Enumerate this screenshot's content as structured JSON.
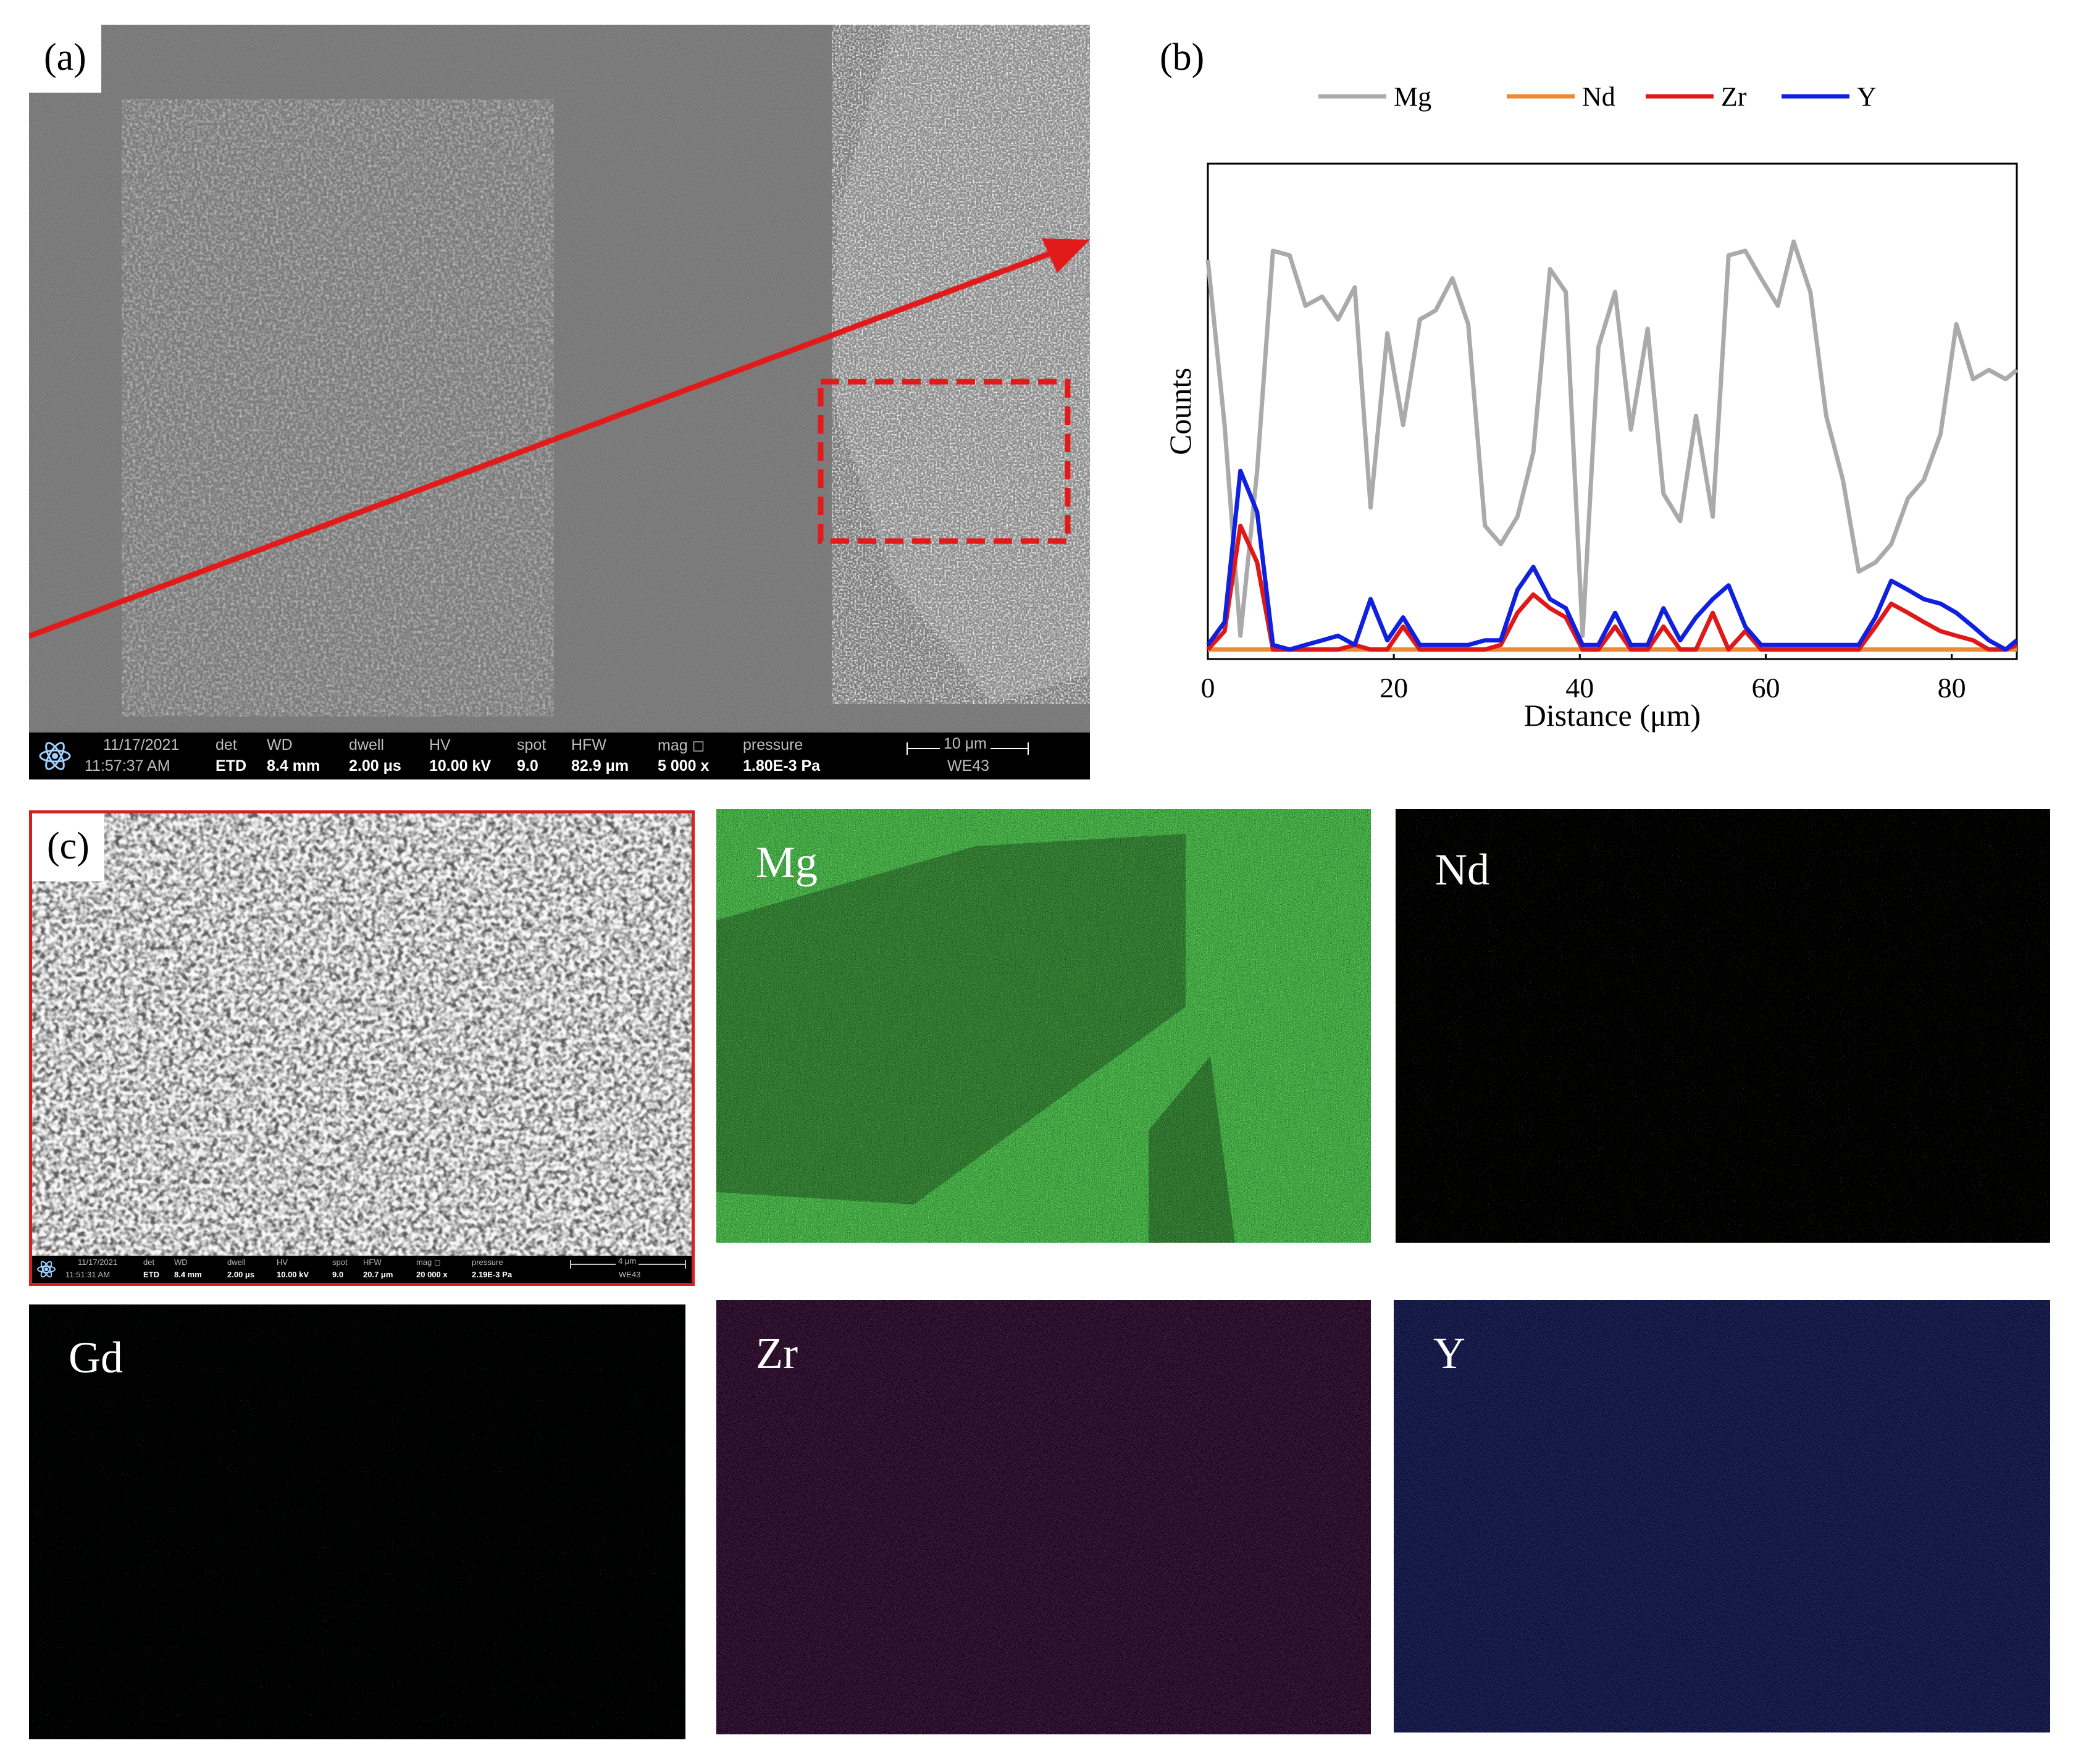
{
  "panels": {
    "a_label": "(a)",
    "b_label": "(b)",
    "c_label": "(c)"
  },
  "sem_a": {
    "date": "11/17/2021",
    "time": "11:57:37 AM",
    "det_h": "det",
    "det_v": "ETD",
    "wd_h": "WD",
    "wd_v": "8.4 mm",
    "dwell_h": "dwell",
    "dwell_v": "2.00 μs",
    "hv_h": "HV",
    "hv_v": "10.00 kV",
    "spot_h": "spot",
    "spot_v": "9.0",
    "hfw_h": "HFW",
    "hfw_v": "82.9 μm",
    "mag_h": "mag ◻",
    "mag_v": "5 000 x",
    "pressure_h": "pressure",
    "pressure_v": "1.80E-3 Pa",
    "scalebar": "10 μm",
    "sample": "WE43"
  },
  "sem_c": {
    "date": "11/17/2021",
    "time": "11:51:31 AM",
    "det_h": "det",
    "det_v": "ETD",
    "wd_h": "WD",
    "wd_v": "8.4 mm",
    "dwell_h": "dwell",
    "dwell_v": "2.00 μs",
    "hv_h": "HV",
    "hv_v": "10.00 kV",
    "spot_h": "spot",
    "spot_v": "9.0",
    "hfw_h": "HFW",
    "hfw_v": "20.7 μm",
    "mag_h": "mag ◻",
    "mag_v": "20 000 x",
    "pressure_h": "pressure",
    "pressure_v": "2.19E-3 Pa",
    "scalebar": "4 μm",
    "sample": "WE43"
  },
  "maps": [
    {
      "label": "Mg",
      "color": "#22d422"
    },
    {
      "label": "Nd",
      "color": "#c8c820"
    },
    {
      "label": "Gd",
      "color": "#20c8c8"
    },
    {
      "label": "Zr",
      "color": "#c020c0"
    },
    {
      "label": "Y",
      "color": "#2030e0"
    }
  ],
  "chart_data": {
    "type": "line",
    "title": "",
    "xlabel": "Distance (μm)",
    "ylabel": "Counts",
    "xlim": [
      0,
      87
    ],
    "xticks": [
      0,
      20,
      40,
      60,
      80
    ],
    "xtick_labels": [
      "0",
      "20",
      "40",
      "60",
      "80"
    ],
    "ylim": [
      0,
      100
    ],
    "legend_position": "top",
    "x": [
      0,
      1.8,
      3.5,
      5.3,
      7,
      8.8,
      10.5,
      12.3,
      14,
      15.8,
      17.5,
      19.3,
      21,
      22.8,
      24.5,
      26.3,
      28,
      29.8,
      31.5,
      33.3,
      35,
      36.8,
      38.5,
      40.3,
      42,
      43.8,
      45.5,
      47.3,
      49,
      50.8,
      52.5,
      54.3,
      56,
      57.8,
      59.5,
      61.3,
      63,
      64.8,
      66.5,
      68.3,
      70,
      71.8,
      73.5,
      75.3,
      77,
      78.8,
      80.5,
      82.3,
      84,
      85.8,
      87
    ],
    "series": [
      {
        "name": "Mg",
        "color": "#aaaaaa",
        "values": [
          86,
          50,
          4,
          40,
          88,
          87,
          76,
          78,
          73,
          80,
          32,
          70,
          50,
          73,
          75,
          82,
          72,
          28,
          24,
          30,
          44,
          84,
          79,
          4,
          67,
          79,
          49,
          71,
          35,
          29,
          52,
          30,
          87,
          88,
          82,
          76,
          90,
          79,
          52,
          38,
          18,
          20,
          24,
          34,
          38,
          48,
          72,
          60,
          62,
          60,
          62
        ]
      },
      {
        "name": "Nd",
        "color": "#f08a30",
        "values": [
          1,
          1,
          1,
          1,
          1,
          1,
          1,
          1,
          1,
          1,
          1,
          1,
          1,
          1,
          1,
          1,
          1,
          1,
          1,
          1,
          1,
          1,
          1,
          1,
          1,
          1,
          1,
          1,
          1,
          1,
          1,
          1,
          1,
          1,
          1,
          1,
          1,
          1,
          1,
          1,
          1,
          1,
          1,
          1,
          1,
          1,
          1,
          1,
          1,
          1,
          1
        ]
      },
      {
        "name": "Zr",
        "color": "#e01818",
        "values": [
          1,
          5,
          28,
          20,
          1,
          1,
          1,
          1,
          1,
          2,
          1,
          1,
          6,
          1,
          1,
          1,
          1,
          1,
          2,
          9,
          13,
          10,
          8,
          1,
          1,
          6,
          1,
          1,
          6,
          1,
          1,
          9,
          1,
          5,
          1,
          1,
          1,
          1,
          1,
          1,
          1,
          6,
          11,
          9,
          7,
          5,
          4,
          3,
          1,
          1,
          2
        ]
      },
      {
        "name": "Y",
        "color": "#1020e0",
        "values": [
          2,
          7,
          40,
          31,
          2,
          1,
          2,
          3,
          4,
          2,
          12,
          3,
          8,
          2,
          2,
          2,
          2,
          3,
          3,
          14,
          19,
          12,
          10,
          2,
          2,
          9,
          2,
          2,
          10,
          3,
          8,
          12,
          15,
          6,
          2,
          2,
          2,
          2,
          2,
          2,
          2,
          8,
          16,
          14,
          12,
          11,
          9,
          6,
          3,
          1,
          3
        ]
      }
    ]
  }
}
